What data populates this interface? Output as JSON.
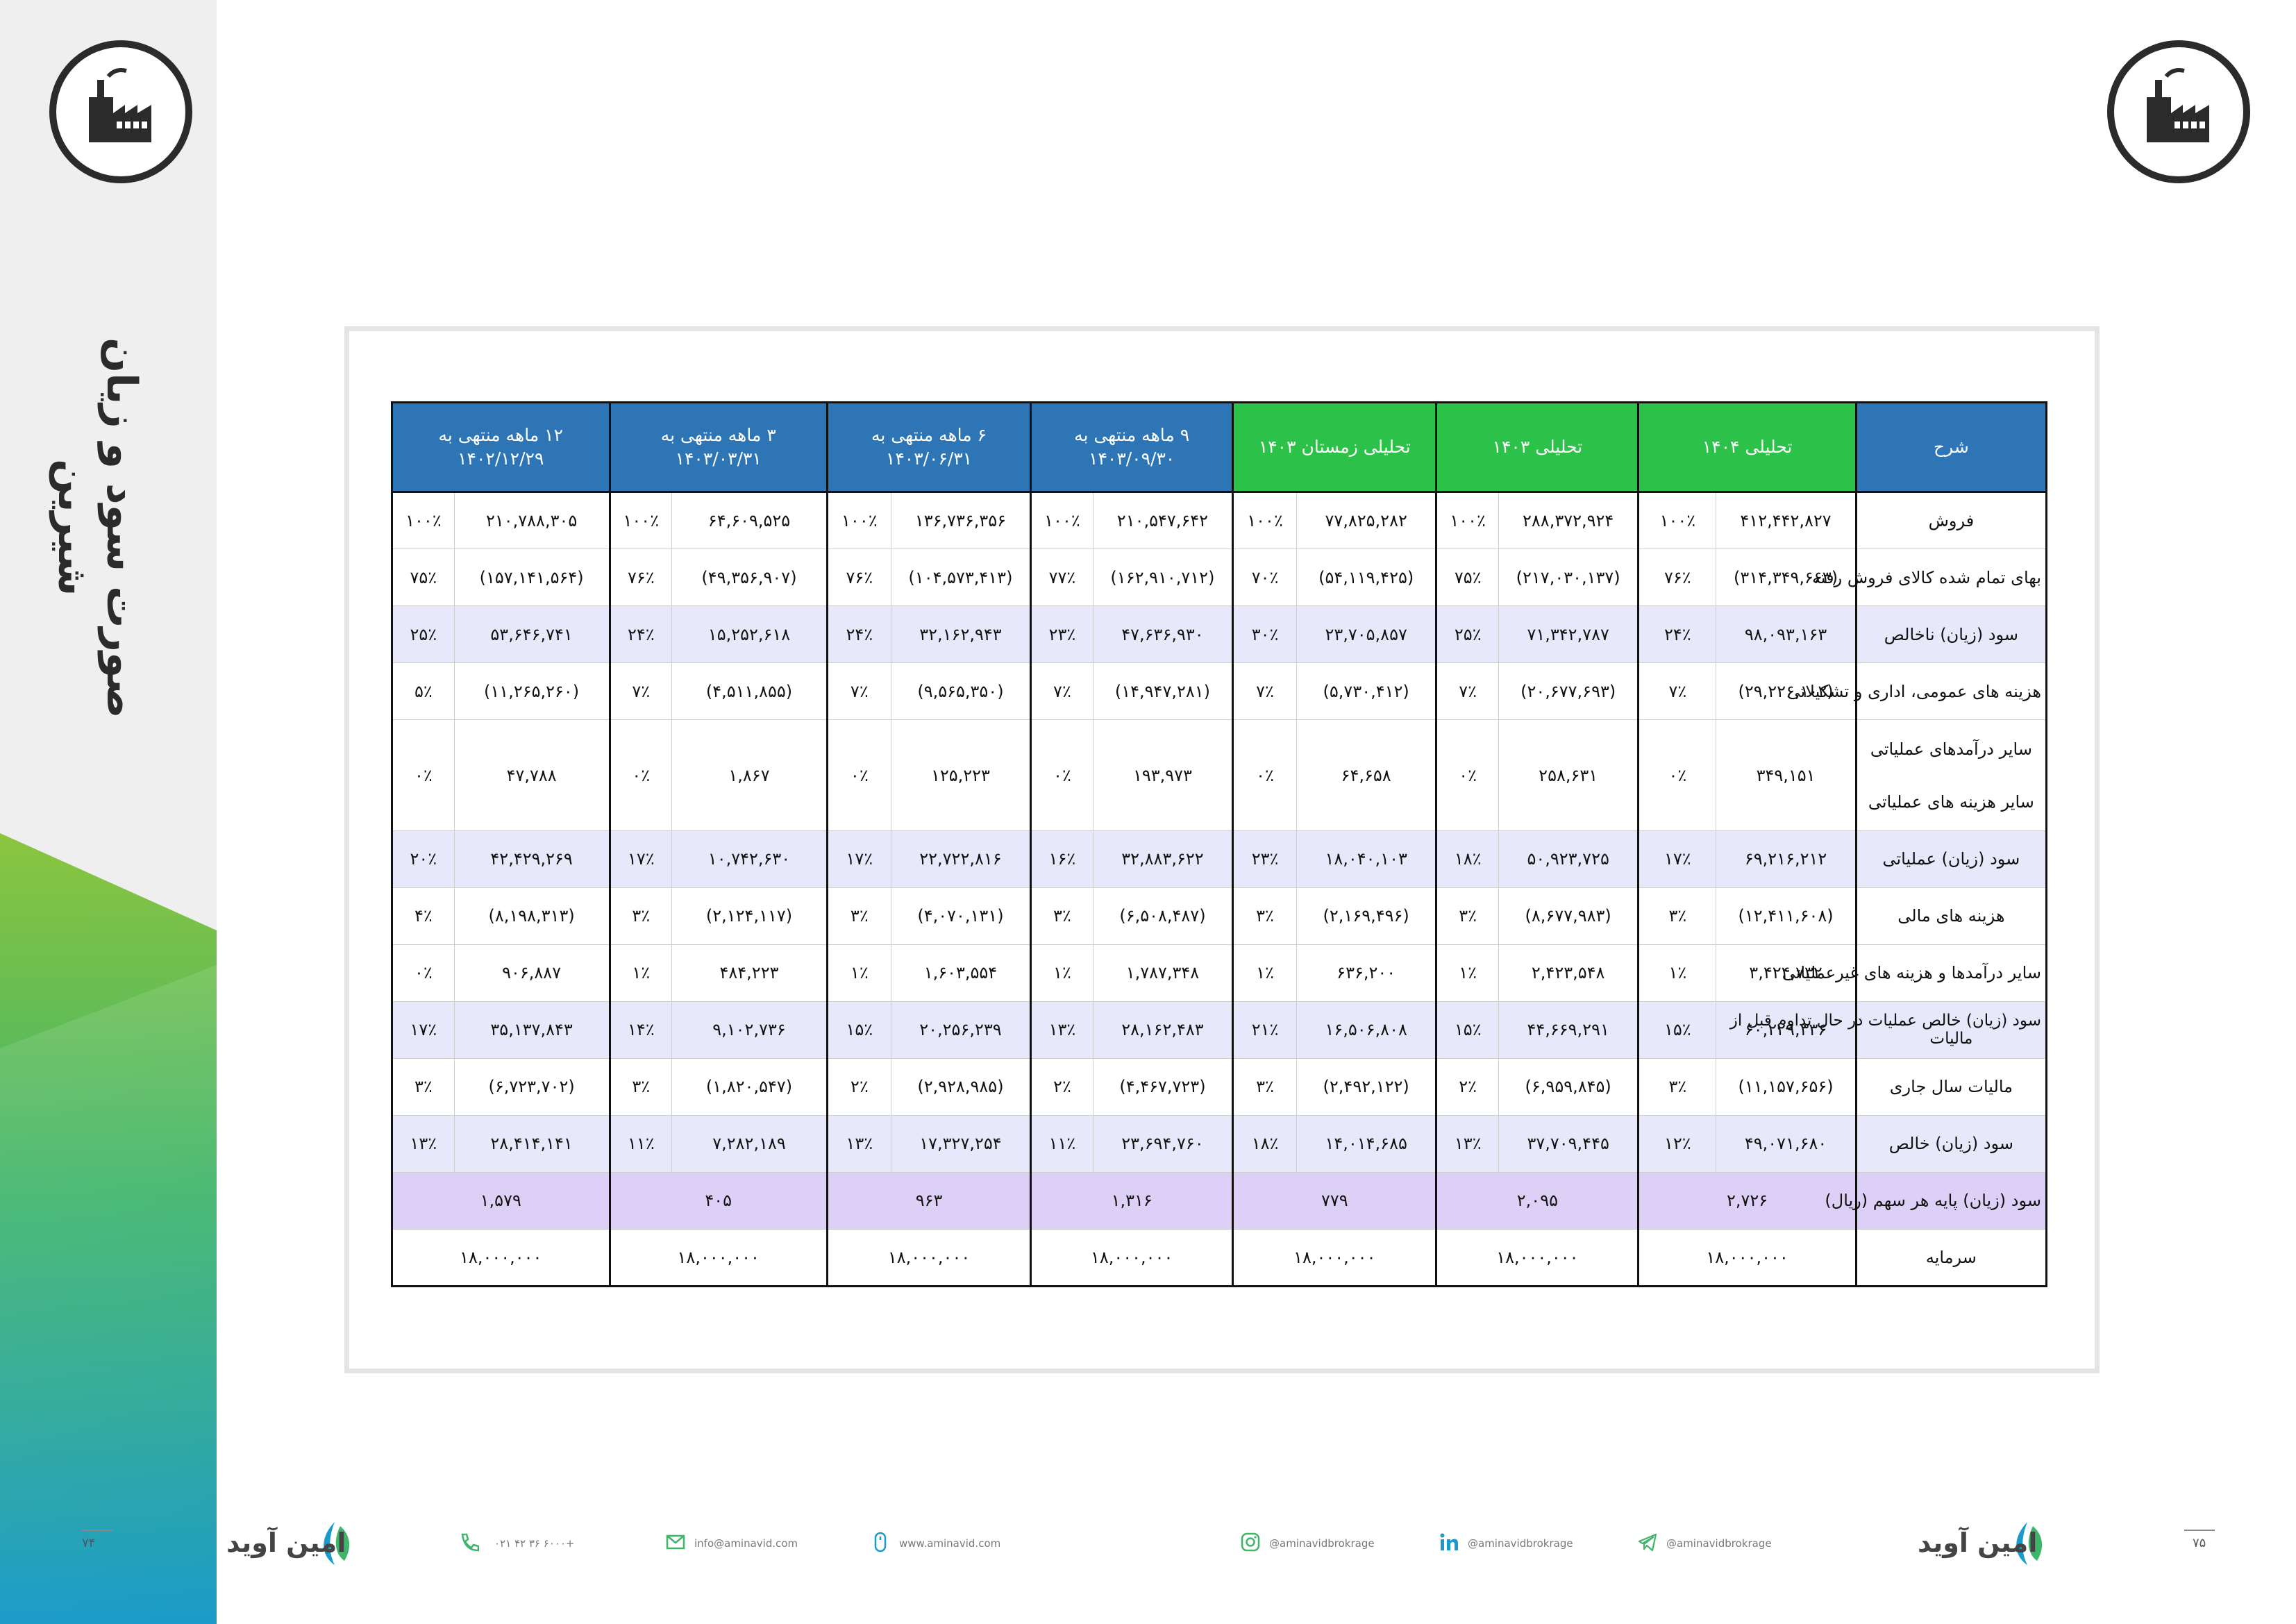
{
  "sidebar": {
    "title": "صورت سود و زیان شیرین",
    "page_left": "۷۴"
  },
  "page_right": "۷۵",
  "brand": "امین آوید",
  "table": {
    "headers": [
      {
        "label": "شرح",
        "line2": "",
        "color": "blue"
      },
      {
        "label": "تحلیلی ۱۴۰۴",
        "line2": "",
        "color": "green"
      },
      {
        "label": "تحلیلی ۱۴۰۳",
        "line2": "",
        "color": "green"
      },
      {
        "label": "تحلیلی زمستان ۱۴۰۳",
        "line2": "",
        "color": "green"
      },
      {
        "label": "۹ ماهه منتهی به",
        "line2": "۱۴۰۳/۰۹/۳۰",
        "color": "blue"
      },
      {
        "label": "۶ ماهه منتهی به",
        "line2": "۱۴۰۳/۰۶/۳۱",
        "color": "blue"
      },
      {
        "label": "۳ ماهه منتهی به",
        "line2": "۱۴۰۳/۰۳/۳۱",
        "color": "blue"
      },
      {
        "label": "۱۲ ماهه منتهی به",
        "line2": "۱۴۰۲/۱۲/۲۹",
        "color": "blue"
      }
    ],
    "rows": [
      {
        "desc": "فروش",
        "shade": false,
        "cells": [
          [
            "۴۱۲,۴۴۲,۸۲۷",
            "۱۰۰٪"
          ],
          [
            "۲۸۸,۳۷۲,۹۲۴",
            "۱۰۰٪"
          ],
          [
            "۷۷,۸۲۵,۲۸۲",
            "۱۰۰٪"
          ],
          [
            "۲۱۰,۵۴۷,۶۴۲",
            "۱۰۰٪"
          ],
          [
            "۱۳۶,۷۳۶,۳۵۶",
            "۱۰۰٪"
          ],
          [
            "۶۴,۶۰۹,۵۲۵",
            "۱۰۰٪"
          ],
          [
            "۲۱۰,۷۸۸,۳۰۵",
            "۱۰۰٪"
          ]
        ]
      },
      {
        "desc": "بهای تمام شده کالای فروش رفته",
        "shade": false,
        "neg": true,
        "cells": [
          [
            "(۳۱۴,۳۴۹,۶۶۳)",
            "۷۶٪"
          ],
          [
            "(۲۱۷,۰۳۰,۱۳۷)",
            "۷۵٪"
          ],
          [
            "(۵۴,۱۱۹,۴۲۵)",
            "۷۰٪"
          ],
          [
            "(۱۶۲,۹۱۰,۷۱۲)",
            "۷۷٪"
          ],
          [
            "(۱۰۴,۵۷۳,۴۱۳)",
            "۷۶٪"
          ],
          [
            "(۴۹,۳۵۶,۹۰۷)",
            "۷۶٪"
          ],
          [
            "(۱۵۷,۱۴۱,۵۶۴)",
            "۷۵٪"
          ]
        ]
      },
      {
        "desc": "سود (زیان) ناخالص",
        "shade": true,
        "cells": [
          [
            "۹۸,۰۹۳,۱۶۳",
            "۲۴٪"
          ],
          [
            "۷۱,۳۴۲,۷۸۷",
            "۲۵٪"
          ],
          [
            "۲۳,۷۰۵,۸۵۷",
            "۳۰٪"
          ],
          [
            "۴۷,۶۳۶,۹۳۰",
            "۲۳٪"
          ],
          [
            "۳۲,۱۶۲,۹۴۳",
            "۲۴٪"
          ],
          [
            "۱۵,۲۵۲,۶۱۸",
            "۲۴٪"
          ],
          [
            "۵۳,۶۴۶,۷۴۱",
            "۲۵٪"
          ]
        ]
      },
      {
        "desc": "هزینه های عمومی، اداری و تشکیلاتی",
        "shade": false,
        "neg": true,
        "cells": [
          [
            "(۲۹,۲۲۶,۱۰۲)",
            "۷٪"
          ],
          [
            "(۲۰,۶۷۷,۶۹۳)",
            "۷٪"
          ],
          [
            "(۵,۷۳۰,۴۱۲)",
            "۷٪"
          ],
          [
            "(۱۴,۹۴۷,۲۸۱)",
            "۷٪"
          ],
          [
            "(۹,۵۶۵,۳۵۰)",
            "۷٪"
          ],
          [
            "(۴,۵۱۱,۸۵۵)",
            "۷٪"
          ],
          [
            "(۱۱,۲۶۵,۲۶۰)",
            "۵٪"
          ]
        ]
      },
      {
        "desc": "سایر درآمدهای عملیاتی",
        "desc2": "سایر هزینه های عملیاتی",
        "tall": true,
        "shade": false,
        "cells": [
          [
            "۳۴۹,۱۵۱",
            "۰٪"
          ],
          [
            "۲۵۸,۶۳۱",
            "۰٪"
          ],
          [
            "۶۴,۶۵۸",
            "۰٪"
          ],
          [
            "۱۹۳,۹۷۳",
            "۰٪"
          ],
          [
            "۱۲۵,۲۲۳",
            "۰٪"
          ],
          [
            "۱,۸۶۷",
            "۰٪"
          ],
          [
            "۴۷,۷۸۸",
            "۰٪"
          ]
        ]
      },
      {
        "desc": "سود (زیان) عملیاتی",
        "shade": true,
        "cells": [
          [
            "۶۹,۲۱۶,۲۱۲",
            "۱۷٪"
          ],
          [
            "۵۰,۹۲۳,۷۲۵",
            "۱۸٪"
          ],
          [
            "۱۸,۰۴۰,۱۰۳",
            "۲۳٪"
          ],
          [
            "۳۲,۸۸۳,۶۲۲",
            "۱۶٪"
          ],
          [
            "۲۲,۷۲۲,۸۱۶",
            "۱۷٪"
          ],
          [
            "۱۰,۷۴۲,۶۳۰",
            "۱۷٪"
          ],
          [
            "۴۲,۴۲۹,۲۶۹",
            "۲۰٪"
          ]
        ]
      },
      {
        "desc": "هزینه های مالی",
        "shade": false,
        "neg": true,
        "cells": [
          [
            "(۱۲,۴۱۱,۶۰۸)",
            "۳٪"
          ],
          [
            "(۸,۶۷۷,۹۸۳)",
            "۳٪"
          ],
          [
            "(۲,۱۶۹,۴۹۶)",
            "۳٪"
          ],
          [
            "(۶,۵۰۸,۴۸۷)",
            "۳٪"
          ],
          [
            "(۴,۰۷۰,۱۳۱)",
            "۳٪"
          ],
          [
            "(۲,۱۲۴,۱۱۷)",
            "۳٪"
          ],
          [
            "(۸,۱۹۸,۳۱۳)",
            "۴٪"
          ]
        ]
      },
      {
        "desc": "سایر درآمدها و هزینه های غیرعملیاتی",
        "shade": false,
        "cells": [
          [
            "۳,۴۲۴,۷۳۲",
            "۱٪"
          ],
          [
            "۲,۴۲۳,۵۴۸",
            "۱٪"
          ],
          [
            "۶۳۶,۲۰۰",
            "۱٪"
          ],
          [
            "۱,۷۸۷,۳۴۸",
            "۱٪"
          ],
          [
            "۱,۶۰۳,۵۵۴",
            "۱٪"
          ],
          [
            "۴۸۴,۲۲۳",
            "۱٪"
          ],
          [
            "۹۰۶,۸۸۷",
            "۰٪"
          ]
        ]
      },
      {
        "desc": "سود (زیان) خالص عملیات در حال تداوم قبل از",
        "desc2": "مالیات",
        "twoLine": true,
        "shade": true,
        "cells": [
          [
            "۶۰,۲۲۹,۳۳۶",
            "۱۵٪"
          ],
          [
            "۴۴,۶۶۹,۲۹۱",
            "۱۵٪"
          ],
          [
            "۱۶,۵۰۶,۸۰۸",
            "۲۱٪"
          ],
          [
            "۲۸,۱۶۲,۴۸۳",
            "۱۳٪"
          ],
          [
            "۲۰,۲۵۶,۲۳۹",
            "۱۵٪"
          ],
          [
            "۹,۱۰۲,۷۳۶",
            "۱۴٪"
          ],
          [
            "۳۵,۱۳۷,۸۴۳",
            "۱۷٪"
          ]
        ]
      },
      {
        "desc": "مالیات سال جاری",
        "shade": false,
        "neg": true,
        "cells": [
          [
            "(۱۱,۱۵۷,۶۵۶)",
            "۳٪"
          ],
          [
            "(۶,۹۵۹,۸۴۵)",
            "۲٪"
          ],
          [
            "(۲,۴۹۲,۱۲۲)",
            "۳٪"
          ],
          [
            "(۴,۴۶۷,۷۲۳)",
            "۲٪"
          ],
          [
            "(۲,۹۲۸,۹۸۵)",
            "۲٪"
          ],
          [
            "(۱,۸۲۰,۵۴۷)",
            "۳٪"
          ],
          [
            "(۶,۷۲۳,۷۰۲)",
            "۳٪"
          ]
        ]
      },
      {
        "desc": "سود (زیان) خالص",
        "shade": true,
        "cells": [
          [
            "۴۹,۰۷۱,۶۸۰",
            "۱۲٪"
          ],
          [
            "۳۷,۷۰۹,۴۴۵",
            "۱۳٪"
          ],
          [
            "۱۴,۰۱۴,۶۸۵",
            "۱۸٪"
          ],
          [
            "۲۳,۶۹۴,۷۶۰",
            "۱۱٪"
          ],
          [
            "۱۷,۳۲۷,۲۵۴",
            "۱۳٪"
          ],
          [
            "۷,۲۸۲,۱۸۹",
            "۱۱٪"
          ],
          [
            "۲۸,۴۱۴,۱۴۱",
            "۱۳٪"
          ]
        ]
      }
    ],
    "eps": {
      "desc": "سود (زیان)  پایه هر سهم (ریال)",
      "values": [
        "۲,۷۲۶",
        "۲,۰۹۵",
        "۷۷۹",
        "۱,۳۱۶",
        "۹۶۳",
        "۴۰۵",
        "۱,۵۷۹"
      ]
    },
    "capital": {
      "desc": "سرمایه",
      "values": [
        "۱۸,۰۰۰,۰۰۰",
        "۱۸,۰۰۰,۰۰۰",
        "۱۸,۰۰۰,۰۰۰",
        "۱۸,۰۰۰,۰۰۰",
        "۱۸,۰۰۰,۰۰۰",
        "۱۸,۰۰۰,۰۰۰",
        "۱۸,۰۰۰,۰۰۰"
      ]
    }
  },
  "footer": {
    "phone": "۰۲۱ ۴۲ ۳۶ ۶۰۰۰+",
    "email": "info@aminavid.com",
    "website": "www.aminavid.com",
    "instagram": "@aminavidbrokrage",
    "linkedin": "@aminavidbrokrage",
    "telegram": "@aminavidbrokrage"
  },
  "colors": {
    "header_blue": "#2e75b6",
    "header_green": "#2cc24a",
    "negative": "#e0000f",
    "shade": "#e8e8fb",
    "eps": "#dcd0f7"
  },
  "icons": [
    "factory-icon",
    "phone-icon",
    "email-icon",
    "mouse-icon",
    "instagram-icon",
    "linkedin-icon",
    "telegram-icon",
    "brand-logo-icon"
  ]
}
